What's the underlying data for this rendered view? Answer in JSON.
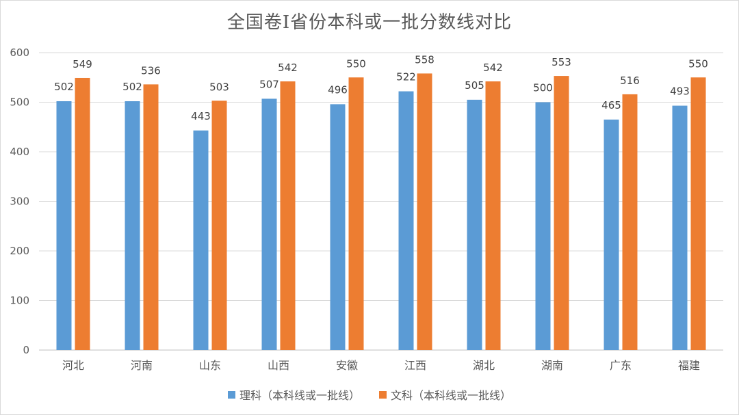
{
  "chart_data": {
    "type": "bar",
    "title": "全国卷Ⅰ省份本科或一批分数线对比",
    "categories": [
      "河北",
      "河南",
      "山东",
      "山西",
      "安徽",
      "江西",
      "湖北",
      "湖南",
      "广东",
      "福建"
    ],
    "series": [
      {
        "name": "理科（本科线或一批线）",
        "color": "#5b9bd5",
        "values": [
          502,
          502,
          443,
          507,
          496,
          522,
          505,
          500,
          465,
          493
        ]
      },
      {
        "name": "文科（本科线或一批线）",
        "color": "#ed7d31",
        "values": [
          549,
          536,
          503,
          542,
          550,
          558,
          542,
          553,
          516,
          550
        ]
      }
    ],
    "ylim": [
      0,
      600
    ],
    "yticks": [
      0,
      100,
      200,
      300,
      400,
      500,
      600
    ],
    "grid": true,
    "legend_position": "bottom"
  }
}
